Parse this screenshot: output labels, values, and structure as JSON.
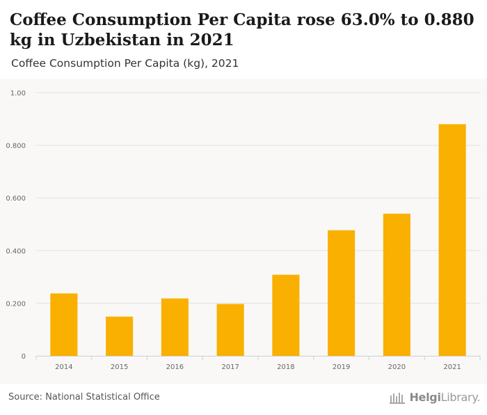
{
  "header": {
    "title": "Coffee Consumption Per Capita rose 63.0% to 0.880 kg in Uzbekistan in 2021",
    "subtitle": "Coffee Consumption Per Capita (kg), 2021"
  },
  "footer": {
    "source": "Source: National Statistical Office",
    "logo_bold": "Helgi",
    "logo_regular": "Library."
  },
  "colors": {
    "bar": "#f9b000",
    "grid": "#e2e2e2",
    "axis_text": "#666666",
    "logo": "#9a9a9a"
  },
  "chart_data": {
    "type": "bar",
    "title": "Coffee Consumption Per Capita (kg), 2021",
    "xlabel": "",
    "ylabel": "",
    "categories": [
      "2014",
      "2015",
      "2016",
      "2017",
      "2018",
      "2019",
      "2020",
      "2021"
    ],
    "values": [
      0.237,
      0.149,
      0.218,
      0.197,
      0.308,
      0.477,
      0.54,
      0.88
    ],
    "ylim": [
      0,
      1.0
    ],
    "yticks": [
      0,
      0.2,
      0.4,
      0.6,
      0.8,
      1.0
    ],
    "ytick_labels": [
      "0",
      "0.200",
      "0.400",
      "0.600",
      "0.800",
      "1.00"
    ],
    "grid": true,
    "legend": "none"
  }
}
